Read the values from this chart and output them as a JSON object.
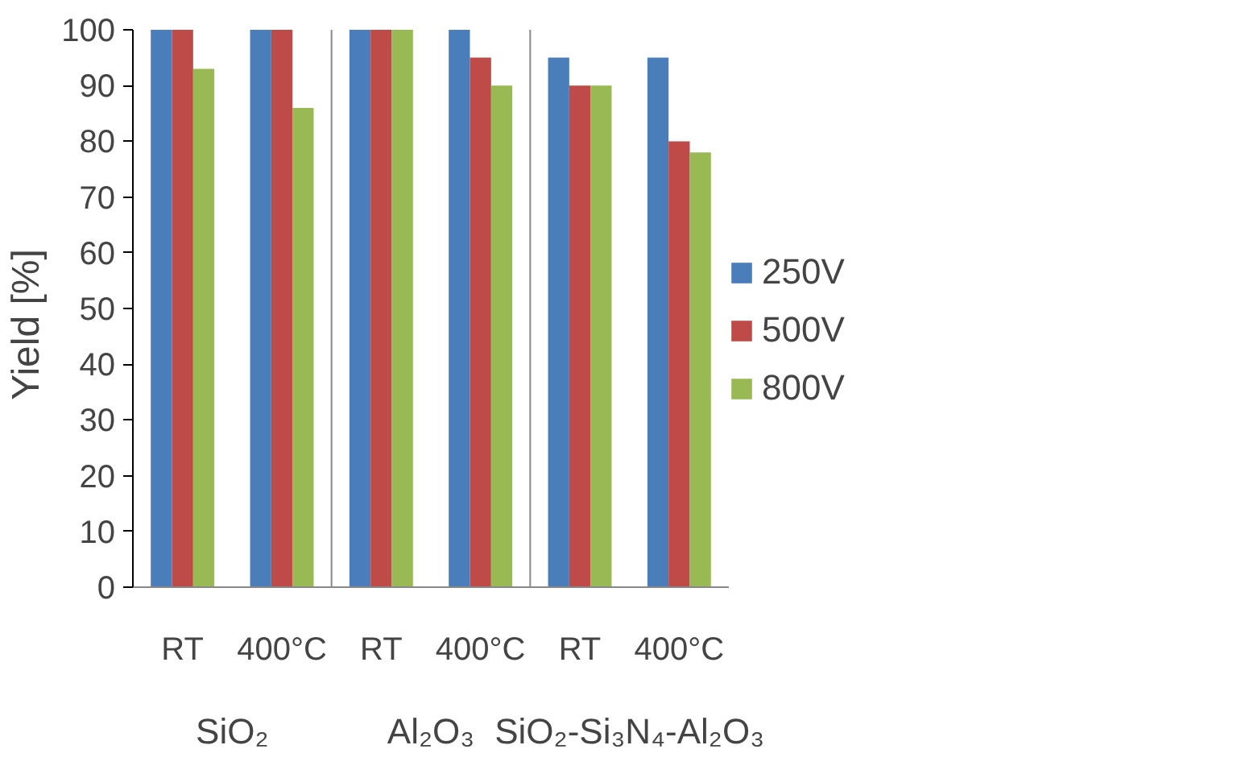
{
  "chart_data": {
    "type": "bar",
    "ylabel": "Yield    [%]",
    "categories": [
      "RT",
      "400°C",
      "RT",
      "400°C",
      "RT",
      "400°C"
    ],
    "annotations": [
      "SiO₂",
      "Al₂O₃",
      "SiO₂-Si₃N₄-Al₂O₃"
    ],
    "series": [
      {
        "name": "250V",
        "color": "#4a7ebb",
        "values": [
          100,
          100,
          100,
          100,
          95,
          95
        ]
      },
      {
        "name": "500V",
        "color": "#be4b48",
        "values": [
          100,
          100,
          100,
          95,
          90,
          80
        ]
      },
      {
        "name": "800V",
        "color": "#98b954",
        "values": [
          93,
          86,
          100,
          90,
          90,
          78
        ]
      }
    ],
    "ylim": [
      0,
      100
    ],
    "yticks": [
      0,
      10,
      20,
      30,
      40,
      50,
      60,
      70,
      80,
      90,
      100
    ],
    "grid": false,
    "legend": "right"
  }
}
